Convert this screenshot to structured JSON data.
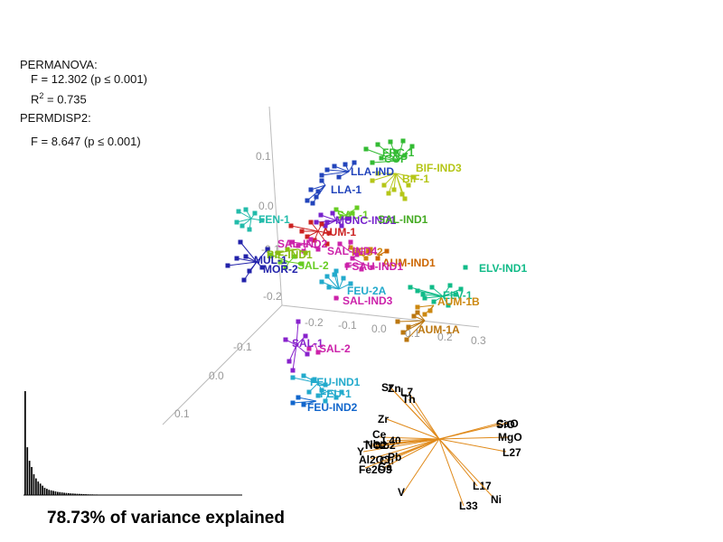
{
  "stats": {
    "permanova_heading": "PERMANOVA:",
    "f_line": "F = 12.302 (p ≤ 0.001)",
    "r2_symbol": "R",
    "r2_exp": "2",
    "r2_value": " = 0.735",
    "permdisp_heading": "PERMDISP2:",
    "f2_line": "F = 8.647 (p ≤ 0.001)"
  },
  "footer_text": "78.73% of variance explained",
  "chart_data": [
    {
      "type": "scatter",
      "subtype": "3d-ordination-spider",
      "axis_ticks": {
        "vertical": [
          "0.1",
          "0.0",
          "-0.1",
          "-0.2"
        ],
        "horizontal": [
          "-0.2",
          "-0.1",
          "0.0",
          "0.1",
          "0.2",
          "0.3"
        ],
        "depth": [
          "-0.1",
          "0.0",
          "0.1"
        ]
      },
      "groups": [
        {
          "label": "FRC-1",
          "color": "#33bb33"
        },
        {
          "label": "COP",
          "color": "#33bb33"
        },
        {
          "label": "BIF-IND3",
          "color": "#b5c618"
        },
        {
          "label": "BIF-1",
          "color": "#b5c618"
        },
        {
          "label": "LLA-IND",
          "color": "#2244bb"
        },
        {
          "label": "LLA-1",
          "color": "#2244bb"
        },
        {
          "label": "FEN-1",
          "color": "#22bbaa"
        },
        {
          "label": "SAL-1",
          "color": "#66cc22"
        },
        {
          "label": "MUNC-IND1",
          "color": "#7722cc"
        },
        {
          "label": "SAL-IND1",
          "color": "#44aa22"
        },
        {
          "label": "AUM-1",
          "color": "#cc2222"
        },
        {
          "label": "SAL-IND2",
          "color": "#cc22aa"
        },
        {
          "label": "SAL-2",
          "color": "#66cc22"
        },
        {
          "label": "BIF-IND1",
          "color": "#88bb11"
        },
        {
          "label": "MUL-1",
          "color": "#2222aa"
        },
        {
          "label": "MOR-2",
          "color": "#2222aa"
        },
        {
          "label": "FEU-2",
          "color": "#cc8811"
        },
        {
          "label": "SAL-IND4",
          "color": "#cc22aa"
        },
        {
          "label": "AUM-IND1",
          "color": "#cc6600"
        },
        {
          "label": "FSAU-IND1",
          "color": "#cc22aa"
        },
        {
          "label": "ELV-IND1",
          "color": "#11bb88"
        },
        {
          "label": "FEU-2A",
          "color": "#22aacc"
        },
        {
          "label": "ELV-1",
          "color": "#11bb88"
        },
        {
          "label": "SAL-IND3",
          "color": "#cc22aa"
        },
        {
          "label": "AUM-1B",
          "color": "#cc8811"
        },
        {
          "label": "AUM-1A",
          "color": "#bb7711"
        },
        {
          "label": "SAL-1",
          "color": "#8822cc"
        },
        {
          "label": "SAL-2",
          "color": "#cc22aa"
        },
        {
          "label": "FEU-IND1",
          "color": "#22aacc"
        },
        {
          "label": "FEU-1",
          "color": "#22aacc"
        },
        {
          "label": "FEU-IND2",
          "color": "#1166cc"
        }
      ],
      "loadings": [
        "Sr",
        "Zn",
        "L7",
        "Th",
        "Zr",
        "Ce",
        "Y",
        "Nb",
        "Nb2",
        "L40",
        "TiO2",
        "Al2O3",
        "Fe2O3",
        "Cu",
        "Ga",
        "Pb",
        "V",
        "CaO",
        "SiO",
        "MgO",
        "L27",
        "L17",
        "L33",
        "Ni"
      ],
      "loading_color": "#e08a1a"
    },
    {
      "type": "bar",
      "title": "",
      "note": "scree-plot inset, decreasing variance per axis",
      "values": [
        1.0,
        0.46,
        0.33,
        0.27,
        0.2,
        0.16,
        0.13,
        0.11,
        0.09,
        0.07,
        0.06,
        0.05,
        0.045,
        0.04,
        0.035,
        0.03,
        0.028,
        0.025,
        0.022,
        0.02,
        0.018,
        0.016,
        0.015,
        0.013,
        0.012,
        0.011,
        0.01,
        0.009,
        0.008,
        0.007,
        0.006,
        0.006,
        0.005,
        0.005,
        0.004,
        0.004,
        0.003,
        0.003,
        0.003,
        0.002,
        0.002,
        0.002,
        0.002,
        0.002,
        0.001,
        0.001,
        0.001,
        0.001,
        0.001,
        0.001
      ]
    }
  ]
}
